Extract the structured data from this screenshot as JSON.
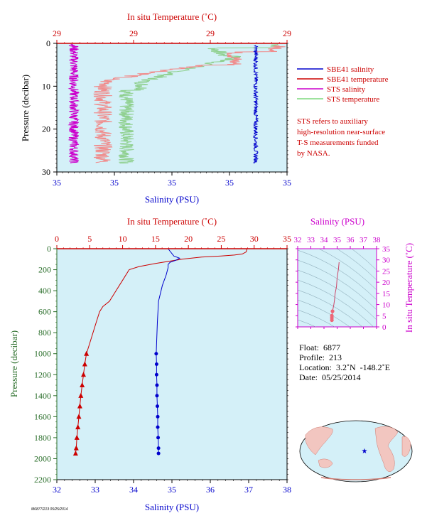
{
  "colors": {
    "bg_plot": "#d4f0f8",
    "red": "#cc0000",
    "blue": "#0000cc",
    "magenta": "#cc00cc",
    "green": "#009900",
    "sts_sal": "#cc00cc",
    "sts_temp_light": "#8fd08f",
    "sbe_temp_light": "#f08c8c",
    "pressure_axis": "#2a6e2a"
  },
  "top_panel": {
    "top_axis_label": "In situ Temperature (˚C)",
    "top_ticks": [
      "29",
      "29",
      "29",
      "29"
    ],
    "left_axis_label": "Pressure (decibar)",
    "left_ticks": [
      "0",
      "10",
      "20",
      "30"
    ],
    "bottom_axis_label": "Salinity (PSU)",
    "bottom_ticks": [
      "35",
      "35",
      "35",
      "35",
      "35"
    ]
  },
  "legend": {
    "items": [
      {
        "label": "SBE41 salinity",
        "color": "#0000cc"
      },
      {
        "label": "SBE41 temperature",
        "color": "#cc0000"
      },
      {
        "label": "STS salinity",
        "color": "#cc00cc"
      },
      {
        "label": "STS temperature",
        "color": "#7dd87d"
      }
    ],
    "note": [
      "STS refers to auxiliary",
      "high-resolution near-surface",
      "T-S measurements funded",
      "by NASA."
    ]
  },
  "main_panel": {
    "top_axis_label": "In situ Temperature (˚C)",
    "top_ticks": [
      "0",
      "5",
      "10",
      "15",
      "20",
      "25",
      "30",
      "35"
    ],
    "left_axis_label": "Pressure (decibar)",
    "left_ticks": [
      "0",
      "200",
      "400",
      "600",
      "800",
      "1000",
      "1200",
      "1400",
      "1600",
      "1800",
      "2000",
      "2200"
    ],
    "bottom_axis_label": "Salinity (PSU)",
    "bottom_ticks": [
      "32",
      "33",
      "34",
      "35",
      "36",
      "37",
      "38"
    ]
  },
  "ts_panel": {
    "top_axis_label": "Salinity (PSU)",
    "top_ticks": [
      "32",
      "33",
      "34",
      "35",
      "36",
      "37",
      "38"
    ],
    "right_axis_label": "In situ Temperature (˚C)",
    "right_ticks": [
      "0",
      "5",
      "10",
      "15",
      "20",
      "25",
      "30",
      "35"
    ]
  },
  "float_info": {
    "float": "Float:  6877",
    "profile": "Profile:  213",
    "location": "Location:  3.2˚N  -148.2˚E",
    "date": "Date:  05/25/2014"
  },
  "footer_code": "M6877/213 05/25/2014",
  "chart_data": [
    {
      "type": "line",
      "name": "main_profile",
      "x_temperature_range": [
        0,
        35
      ],
      "x_salinity_range": [
        32,
        38
      ],
      "y_pressure_range": [
        0,
        2200
      ],
      "series": [
        {
          "name": "temperature",
          "color": "#cc0000",
          "points": [
            [
              28.9,
              0
            ],
            [
              28.8,
              30
            ],
            [
              28.2,
              50
            ],
            [
              27,
              60
            ],
            [
              25,
              70
            ],
            [
              22,
              80
            ],
            [
              19,
              100
            ],
            [
              15,
              140
            ],
            [
              12.5,
              170
            ],
            [
              11,
              200
            ],
            [
              10,
              300
            ],
            [
              9,
              400
            ],
            [
              8,
              500
            ],
            [
              7,
              550
            ],
            [
              6.5,
              600
            ],
            [
              6,
              700
            ],
            [
              5.5,
              800
            ],
            [
              5,
              900
            ],
            [
              4.5,
              1000
            ]
          ],
          "markers": [
            [
              4.5,
              1000
            ],
            [
              4.25,
              1100
            ],
            [
              4.05,
              1200
            ],
            [
              3.85,
              1300
            ],
            [
              3.65,
              1400
            ],
            [
              3.5,
              1500
            ],
            [
              3.35,
              1600
            ],
            [
              3.2,
              1700
            ],
            [
              3.05,
              1800
            ],
            [
              2.95,
              1900
            ],
            [
              2.85,
              1950
            ]
          ]
        },
        {
          "name": "salinity",
          "color": "#0000cc",
          "points": [
            [
              34.9,
              0
            ],
            [
              35.05,
              70
            ],
            [
              35.2,
              90
            ],
            [
              35.1,
              110
            ],
            [
              34.95,
              130
            ],
            [
              34.9,
              150
            ],
            [
              34.9,
              180
            ],
            [
              34.85,
              250
            ],
            [
              34.75,
              350
            ],
            [
              34.65,
              500
            ],
            [
              34.62,
              700
            ],
            [
              34.6,
              900
            ],
            [
              34.59,
              1000
            ]
          ],
          "markers": [
            [
              34.59,
              1000
            ],
            [
              34.6,
              1100
            ],
            [
              34.6,
              1200
            ],
            [
              34.61,
              1300
            ],
            [
              34.61,
              1400
            ],
            [
              34.62,
              1500
            ],
            [
              34.63,
              1600
            ],
            [
              34.63,
              1700
            ],
            [
              34.64,
              1800
            ],
            [
              34.65,
              1900
            ],
            [
              34.65,
              1950
            ]
          ]
        }
      ]
    },
    {
      "type": "scatter",
      "name": "ts_diagram",
      "x_salinity_range": [
        32,
        38
      ],
      "y_temperature_range": [
        0,
        35
      ],
      "points": [
        [
          35.15,
          29
        ],
        [
          35.1,
          26
        ],
        [
          35.0,
          22
        ],
        [
          34.95,
          18
        ],
        [
          34.85,
          15
        ],
        [
          34.8,
          12
        ],
        [
          34.75,
          10
        ],
        [
          34.65,
          7
        ],
        [
          34.6,
          5
        ],
        [
          34.6,
          4
        ],
        [
          34.6,
          3
        ]
      ]
    }
  ]
}
